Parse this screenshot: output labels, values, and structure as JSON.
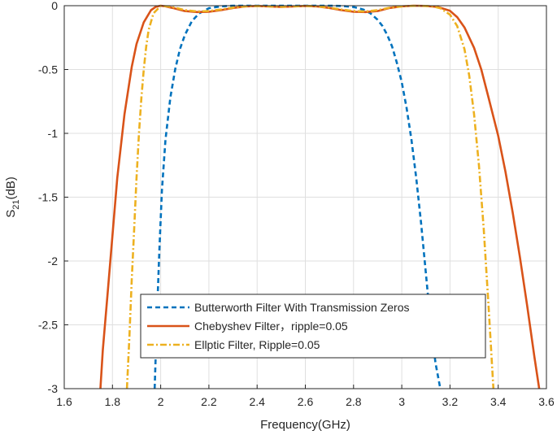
{
  "chart_data": {
    "type": "line",
    "xlabel": "Frequency(GHz)",
    "ylabel_main": "S",
    "ylabel_sub": "21",
    "ylabel_unit": "(dB)",
    "xlim": [
      1.6,
      3.6
    ],
    "ylim": [
      -3,
      0
    ],
    "xticks": [
      1.6,
      1.8,
      2.0,
      2.2,
      2.4,
      2.6,
      2.8,
      3.0,
      3.2,
      3.4,
      3.6
    ],
    "xtick_labels": [
      "1.6",
      "1.8",
      "2",
      "2.2",
      "2.4",
      "2.6",
      "2.8",
      "3",
      "3.2",
      "3.4",
      "3.6"
    ],
    "yticks": [
      0,
      -0.5,
      -1,
      -1.5,
      -2,
      -2.5,
      -3
    ],
    "ytick_labels": [
      "0",
      "-0.5",
      "-1",
      "-1.5",
      "-2",
      "-2.5",
      "-3"
    ],
    "grid": true,
    "legend_position": "bottom-center",
    "series": [
      {
        "name": "Butterworth Filter With Transmission Zeros",
        "color": "#0072BD",
        "style": "dashed",
        "x": [
          1.975,
          1.985,
          1.995,
          2.005,
          2.02,
          2.04,
          2.06,
          2.08,
          2.1,
          2.13,
          2.16,
          2.2,
          2.25,
          2.3,
          2.4,
          2.5,
          2.6,
          2.7,
          2.75,
          2.8,
          2.84,
          2.87,
          2.9,
          2.92,
          2.94,
          2.96,
          2.98,
          3.0,
          3.02,
          3.04,
          3.06,
          3.08,
          3.1,
          3.12,
          3.14,
          3.16
        ],
        "y": [
          -3.0,
          -2.4,
          -1.9,
          -1.45,
          -1.05,
          -0.72,
          -0.5,
          -0.34,
          -0.23,
          -0.12,
          -0.06,
          -0.02,
          -0.005,
          0,
          0,
          0,
          0,
          0,
          -0.002,
          -0.01,
          -0.03,
          -0.06,
          -0.11,
          -0.16,
          -0.23,
          -0.32,
          -0.45,
          -0.6,
          -0.8,
          -1.05,
          -1.35,
          -1.7,
          -2.1,
          -2.5,
          -2.8,
          -3.0
        ]
      },
      {
        "name": "Chebyshev Filter，ripple=0.05",
        "color": "#D95319",
        "style": "solid",
        "x": [
          1.75,
          1.76,
          1.78,
          1.8,
          1.82,
          1.85,
          1.88,
          1.9,
          1.93,
          1.96,
          1.98,
          2.0,
          2.02,
          2.05,
          2.1,
          2.15,
          2.2,
          2.25,
          2.3,
          2.35,
          2.4,
          2.45,
          2.5,
          2.55,
          2.6,
          2.65,
          2.7,
          2.75,
          2.8,
          2.85,
          2.9,
          2.95,
          3.0,
          3.05,
          3.1,
          3.15,
          3.2,
          3.23,
          3.26,
          3.3,
          3.33,
          3.36,
          3.4,
          3.43,
          3.46,
          3.49,
          3.52,
          3.55,
          3.57
        ],
        "y": [
          -3.0,
          -2.7,
          -2.25,
          -1.8,
          -1.35,
          -0.85,
          -0.48,
          -0.3,
          -0.13,
          -0.035,
          -0.008,
          0,
          -0.005,
          -0.018,
          -0.042,
          -0.05,
          -0.048,
          -0.035,
          -0.018,
          -0.006,
          -0.002,
          -0.006,
          -0.01,
          -0.006,
          -0.002,
          -0.006,
          -0.018,
          -0.035,
          -0.048,
          -0.05,
          -0.042,
          -0.018,
          -0.005,
          0,
          -0.002,
          -0.01,
          -0.04,
          -0.09,
          -0.17,
          -0.33,
          -0.5,
          -0.72,
          -1.02,
          -1.3,
          -1.62,
          -1.97,
          -2.35,
          -2.75,
          -3.0
        ]
      },
      {
        "name": "Ellptic Filter, Ripple=0.05",
        "color": "#EDB120",
        "style": "dashdot",
        "x": [
          1.86,
          1.87,
          1.88,
          1.89,
          1.9,
          1.91,
          1.92,
          1.93,
          1.94,
          1.95,
          1.97,
          2.0,
          2.03,
          2.06,
          2.1,
          2.15,
          2.2,
          2.25,
          2.3,
          2.35,
          2.4,
          2.45,
          2.5,
          2.55,
          2.6,
          2.65,
          2.7,
          2.75,
          2.8,
          2.85,
          2.9,
          2.95,
          3.0,
          3.03,
          3.06,
          3.1,
          3.13,
          3.16,
          3.2,
          3.23,
          3.26,
          3.28,
          3.3,
          3.32,
          3.34,
          3.36,
          3.38
        ],
        "y": [
          -3.0,
          -2.6,
          -2.15,
          -1.75,
          -1.35,
          -1.0,
          -0.72,
          -0.5,
          -0.32,
          -0.19,
          -0.06,
          -0.002,
          -0.005,
          -0.015,
          -0.035,
          -0.045,
          -0.042,
          -0.03,
          -0.015,
          -0.005,
          -0.002,
          -0.005,
          -0.008,
          -0.005,
          -0.002,
          -0.005,
          -0.015,
          -0.03,
          -0.042,
          -0.045,
          -0.035,
          -0.015,
          -0.005,
          -0.002,
          -0.001,
          -0.002,
          -0.006,
          -0.02,
          -0.07,
          -0.16,
          -0.34,
          -0.55,
          -0.85,
          -1.25,
          -1.75,
          -2.35,
          -3.0
        ]
      }
    ]
  }
}
